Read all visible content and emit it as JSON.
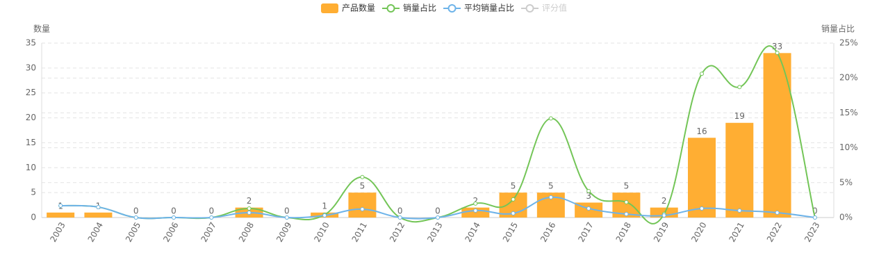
{
  "chart_data": {
    "type": "bar-line",
    "y_label": "数量",
    "y2_label": "销量占比",
    "categories": [
      "2003",
      "2004",
      "2005",
      "2006",
      "2007",
      "2008",
      "2009",
      "2010",
      "2011",
      "2012",
      "2013",
      "2014",
      "2015",
      "2016",
      "2017",
      "2018",
      "2019",
      "2020",
      "2021",
      "2022",
      "2023"
    ],
    "series": [
      {
        "name": "产品数量",
        "type": "bar",
        "color": "#ffae33",
        "values": [
          1,
          1,
          0,
          0,
          0,
          2,
          0,
          1,
          5,
          0,
          0,
          2,
          5,
          5,
          3,
          5,
          2,
          16,
          19,
          33,
          0
        ]
      },
      {
        "name": "销量占比",
        "type": "line",
        "axis": "y2",
        "color": "#73c557",
        "values": [
          1.7,
          1.5,
          0,
          0,
          0,
          1.3,
          0,
          0.4,
          5.8,
          0,
          0,
          2.0,
          2.6,
          14.2,
          3.8,
          2.2,
          0.5,
          20.6,
          18.7,
          23.6,
          0
        ]
      },
      {
        "name": "平均销量占比",
        "type": "line",
        "axis": "y2",
        "color": "#6db3e9",
        "values": [
          1.7,
          1.5,
          0,
          0,
          0,
          0.7,
          0,
          0.3,
          1.2,
          0,
          0,
          1.0,
          0.6,
          2.9,
          1.3,
          0.5,
          0.3,
          1.3,
          1.0,
          0.7,
          0
        ]
      },
      {
        "name": "评分值",
        "type": "line",
        "axis": "y2",
        "color": "#cccccc",
        "hidden": true,
        "values": [
          null,
          null,
          null,
          null,
          null,
          null,
          null,
          null,
          null,
          null,
          null,
          null,
          null,
          null,
          null,
          null,
          null,
          null,
          null,
          null,
          null
        ]
      }
    ],
    "ylim": [
      0,
      35
    ],
    "yticks": [
      0,
      5,
      10,
      15,
      20,
      25,
      30,
      35
    ],
    "y2lim": [
      0,
      25
    ],
    "y2ticks": [
      {
        "value": 0,
        "label": "0%"
      },
      {
        "value": 5,
        "label": "5%"
      },
      {
        "value": 10,
        "label": "10%"
      },
      {
        "value": 15,
        "label": "15%"
      },
      {
        "value": 20,
        "label": "20%"
      },
      {
        "value": 25,
        "label": "25%"
      }
    ],
    "grid": true
  }
}
